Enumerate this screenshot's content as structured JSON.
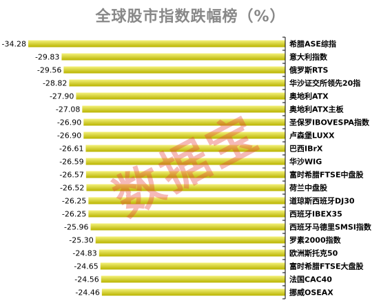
{
  "chart_data": {
    "type": "bar",
    "orientation": "horizontal",
    "title": "全球股市指数跌幅榜（%）",
    "categories": [
      "希腊ASE综指",
      "意大利指数",
      "俄罗斯RTS",
      "华沙证交所领先20指",
      "奥地利ATX",
      "奥地利ATX主板",
      "圣保罗IBOVESPA指数",
      "卢森堡LUXX",
      "巴西IBrX",
      "华沙WIG",
      "富时希腊FTSE中盘股",
      "荷兰中盘股",
      "道琼斯西班牙DJ30",
      "西班牙IBEX35",
      "西班牙马德里SMSI指数",
      "罗素2000指数",
      "欧洲斯托克50",
      "富时希腊FTSE大盘股",
      "法国CAC40",
      "挪威OSEAX"
    ],
    "values": [
      -34.28,
      -29.83,
      -29.56,
      -28.82,
      -27.9,
      -27.08,
      -26.9,
      -26.9,
      -26.61,
      -26.59,
      -26.57,
      -26.52,
      -26.25,
      -26.25,
      -25.96,
      -25.3,
      -24.83,
      -24.65,
      -24.56,
      -24.46
    ],
    "value_labels": [
      "-34.28",
      "-29.83",
      "-29.56",
      "-28.82",
      "-27.90",
      "-27.08",
      "-26.90",
      "-26.90",
      "-26.61",
      "-26.59",
      "-26.57",
      "-26.52",
      "-26.25",
      "-26.25",
      "-25.96",
      "-25.30",
      "-24.83",
      "-24.65",
      "-24.56",
      "-24.46"
    ],
    "xlim": [
      -34.28,
      0
    ],
    "grid": false,
    "legend": "none",
    "colors": {
      "bar_light": "#f4f17a",
      "bar_dark": "#b9b400",
      "tick": "#000000"
    }
  },
  "watermark": "数据宝"
}
